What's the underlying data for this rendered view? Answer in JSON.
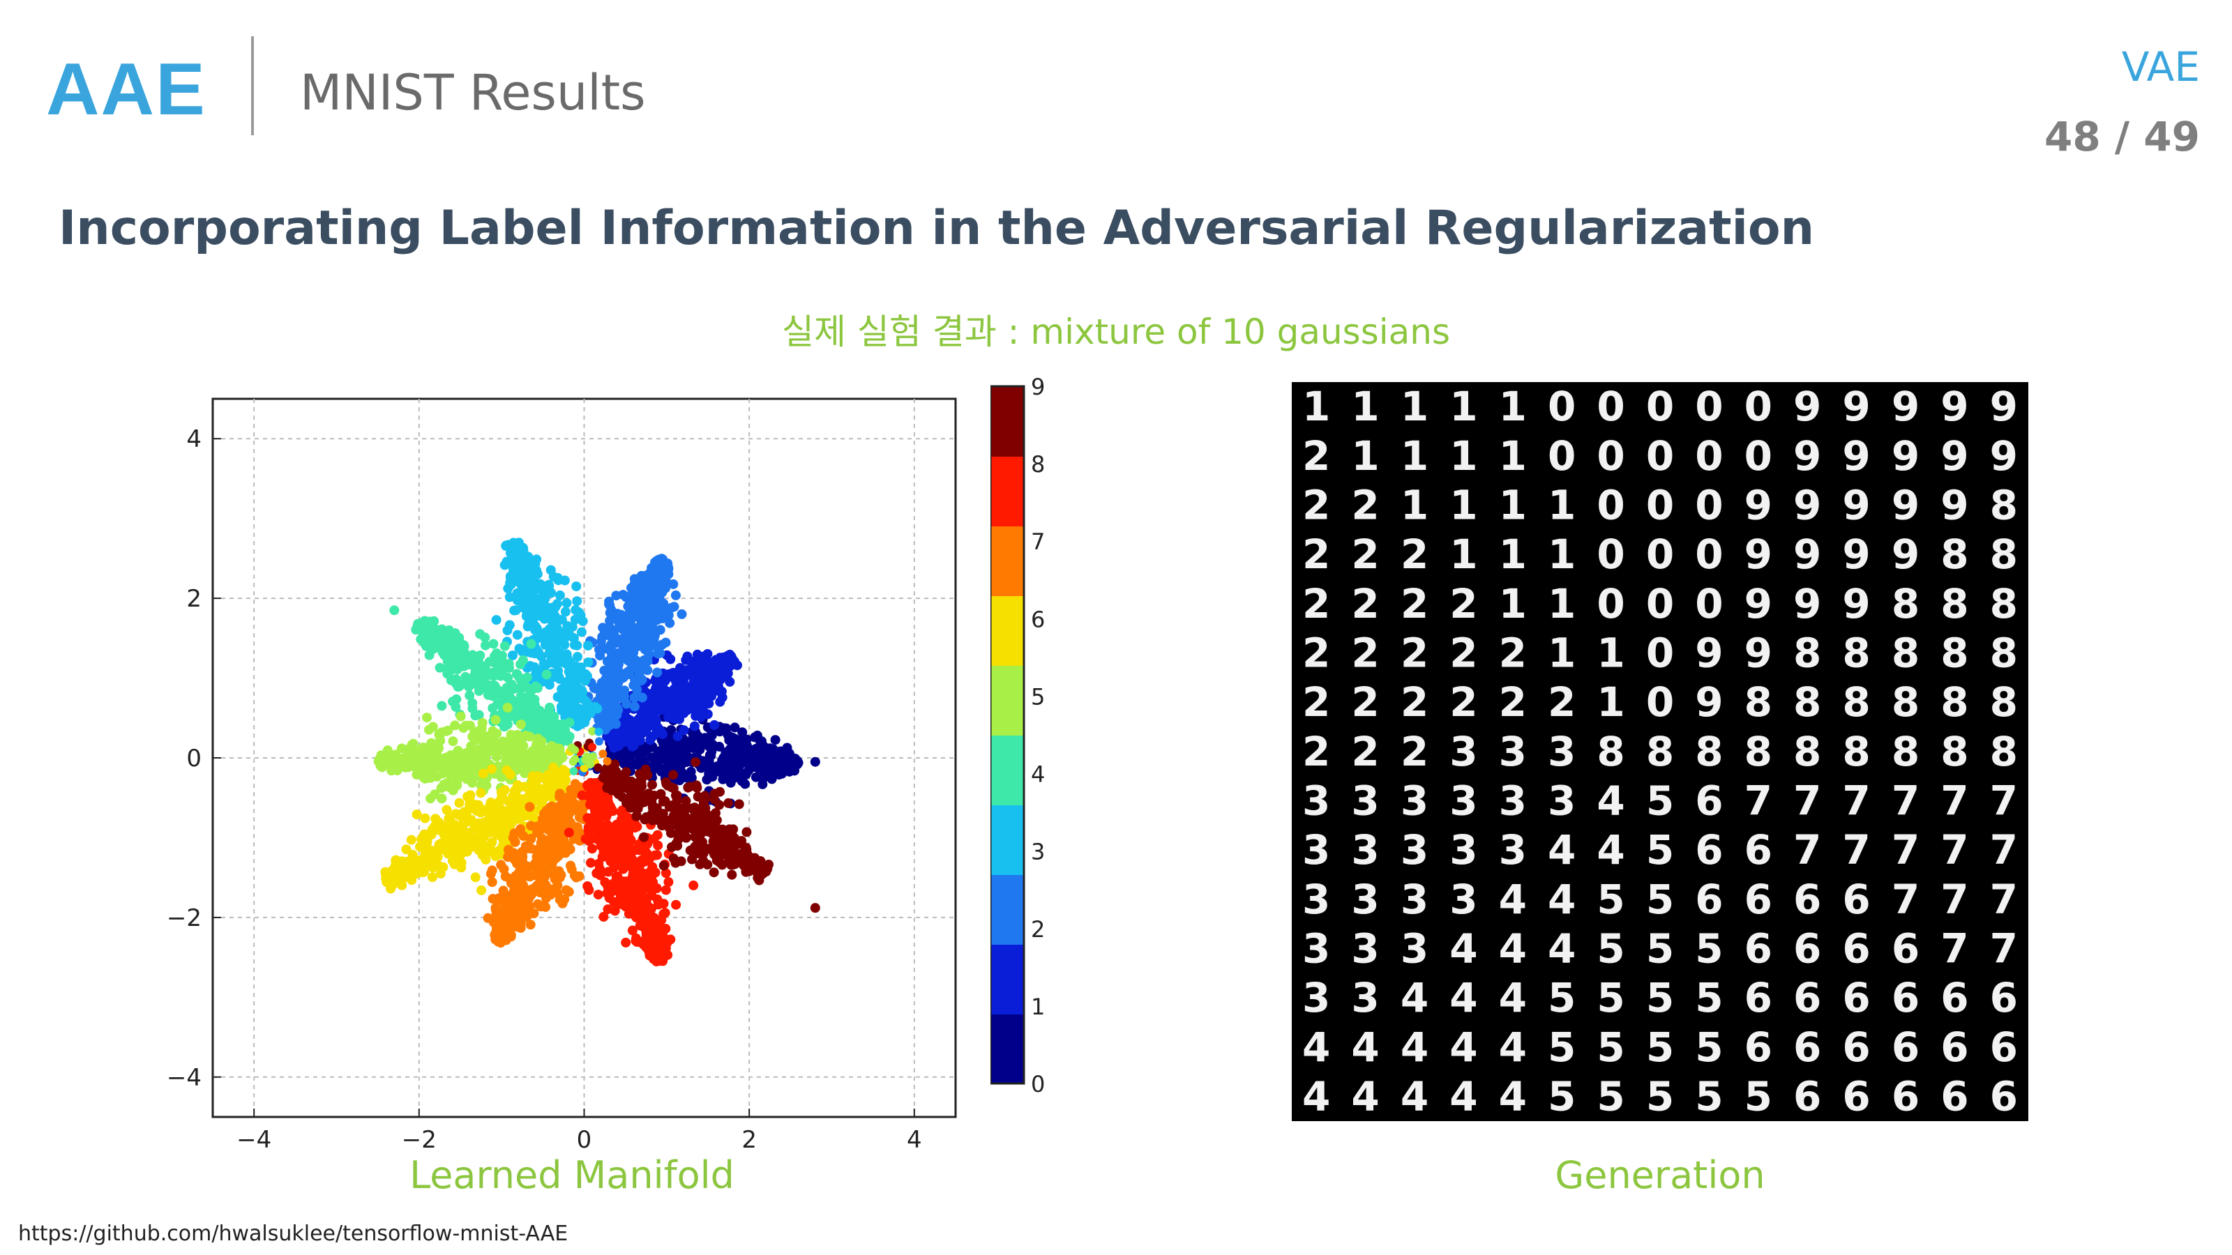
{
  "header": {
    "logo": "AAE",
    "section_title": "MNIST Results",
    "corner_tag": "VAE",
    "page_number": "48 / 49"
  },
  "headline": "Incorporating Label Information in the Adversarial Regularization",
  "subtitle": "실제 실험 결과 : mixture of 10 gaussians",
  "captions": {
    "left": "Learned Manifold",
    "right": "Generation"
  },
  "source_url": "https://github.com/hwalsuklee/tensorflow-mnist-AAE",
  "chart_data": {
    "type": "scatter",
    "title": "",
    "xlabel": "",
    "ylabel": "",
    "xlim": [
      -4.5,
      4.5
    ],
    "ylim": [
      -4.5,
      4.5
    ],
    "xticks": [
      "-4",
      "-2",
      "0",
      "2",
      "4"
    ],
    "yticks": [
      "-4",
      "-2",
      "0",
      "2",
      "4"
    ],
    "grid": true,
    "colormap": "jet",
    "colorbar_ticks": [
      "0",
      "1",
      "2",
      "3",
      "4",
      "5",
      "6",
      "7",
      "8",
      "9"
    ],
    "clusters": [
      {
        "label": "0",
        "color": "#00008b",
        "from": [
          0.3,
          0.05
        ],
        "to": [
          2.6,
          -0.05
        ]
      },
      {
        "label": "1",
        "color": "#0a1ed8",
        "from": [
          0.3,
          0.2
        ],
        "to": [
          1.8,
          1.25
        ]
      },
      {
        "label": "2",
        "color": "#1f78f0",
        "from": [
          0.2,
          0.35
        ],
        "to": [
          0.95,
          2.5
        ]
      },
      {
        "label": "3",
        "color": "#18c0f0",
        "from": [
          -0.05,
          0.4
        ],
        "to": [
          -0.85,
          2.7
        ]
      },
      {
        "label": "4",
        "color": "#3de8a8",
        "from": [
          -0.2,
          0.2
        ],
        "to": [
          -2.0,
          1.7
        ]
      },
      {
        "label": "5",
        "color": "#a8f048",
        "from": [
          -0.25,
          0.0
        ],
        "to": [
          -2.5,
          -0.05
        ]
      },
      {
        "label": "6",
        "color": "#f5e000",
        "from": [
          -0.2,
          -0.2
        ],
        "to": [
          -2.4,
          -1.55
        ]
      },
      {
        "label": "7",
        "color": "#ff7a00",
        "from": [
          -0.05,
          -0.35
        ],
        "to": [
          -1.05,
          -2.3
        ]
      },
      {
        "label": "8",
        "color": "#ff1a00",
        "from": [
          0.1,
          -0.3
        ],
        "to": [
          0.95,
          -2.55
        ]
      },
      {
        "label": "9",
        "color": "#800000",
        "from": [
          0.25,
          -0.15
        ],
        "to": [
          2.2,
          -1.45
        ]
      }
    ],
    "outliers": [
      {
        "label": "0",
        "x": 2.8,
        "y": -0.05
      },
      {
        "label": "9",
        "x": 2.8,
        "y": -1.88
      },
      {
        "label": "4",
        "x": -2.3,
        "y": 1.85
      }
    ]
  },
  "generation_grid": [
    [
      "1",
      "1",
      "1",
      "1",
      "1",
      "0",
      "0",
      "0",
      "0",
      "0",
      "9",
      "9",
      "9",
      "9",
      "9"
    ],
    [
      "2",
      "1",
      "1",
      "1",
      "1",
      "0",
      "0",
      "0",
      "0",
      "0",
      "9",
      "9",
      "9",
      "9",
      "9"
    ],
    [
      "2",
      "2",
      "1",
      "1",
      "1",
      "1",
      "0",
      "0",
      "0",
      "9",
      "9",
      "9",
      "9",
      "9",
      "8"
    ],
    [
      "2",
      "2",
      "2",
      "1",
      "1",
      "1",
      "0",
      "0",
      "0",
      "9",
      "9",
      "9",
      "9",
      "8",
      "8"
    ],
    [
      "2",
      "2",
      "2",
      "2",
      "1",
      "1",
      "0",
      "0",
      "0",
      "9",
      "9",
      "9",
      "8",
      "8",
      "8"
    ],
    [
      "2",
      "2",
      "2",
      "2",
      "2",
      "1",
      "1",
      "0",
      "9",
      "9",
      "8",
      "8",
      "8",
      "8",
      "8"
    ],
    [
      "2",
      "2",
      "2",
      "2",
      "2",
      "2",
      "1",
      "0",
      "9",
      "8",
      "8",
      "8",
      "8",
      "8",
      "8"
    ],
    [
      "2",
      "2",
      "2",
      "3",
      "3",
      "3",
      "8",
      "8",
      "8",
      "8",
      "8",
      "8",
      "8",
      "8",
      "8"
    ],
    [
      "3",
      "3",
      "3",
      "3",
      "3",
      "3",
      "4",
      "5",
      "6",
      "7",
      "7",
      "7",
      "7",
      "7",
      "7"
    ],
    [
      "3",
      "3",
      "3",
      "3",
      "3",
      "4",
      "4",
      "5",
      "6",
      "6",
      "7",
      "7",
      "7",
      "7",
      "7"
    ],
    [
      "3",
      "3",
      "3",
      "3",
      "4",
      "4",
      "5",
      "5",
      "6",
      "6",
      "6",
      "6",
      "7",
      "7",
      "7"
    ],
    [
      "3",
      "3",
      "3",
      "4",
      "4",
      "4",
      "5",
      "5",
      "5",
      "6",
      "6",
      "6",
      "6",
      "7",
      "7"
    ],
    [
      "3",
      "3",
      "4",
      "4",
      "4",
      "5",
      "5",
      "5",
      "5",
      "6",
      "6",
      "6",
      "6",
      "6",
      "6"
    ],
    [
      "4",
      "4",
      "4",
      "4",
      "4",
      "5",
      "5",
      "5",
      "5",
      "6",
      "6",
      "6",
      "6",
      "6",
      "6"
    ],
    [
      "4",
      "4",
      "4",
      "4",
      "4",
      "5",
      "5",
      "5",
      "5",
      "5",
      "6",
      "6",
      "6",
      "6",
      "6"
    ]
  ]
}
